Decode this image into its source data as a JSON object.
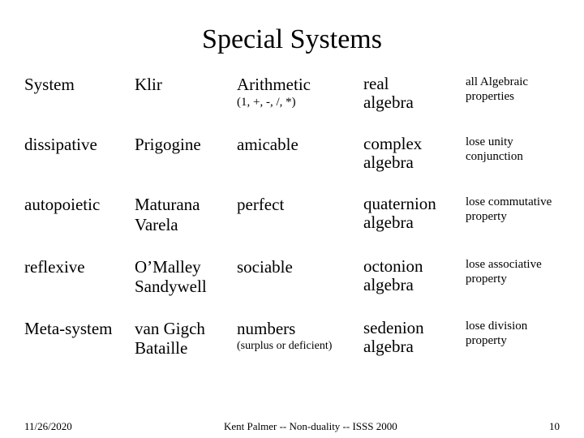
{
  "title": "Special Systems",
  "rows": [
    {
      "col1": "System",
      "col2": "Klir",
      "col3_main": "Arithmetic",
      "col3_sub": "(1, +, -, /, *)",
      "col4_line1": "real",
      "col4_line2": "algebra",
      "col5": "all Algebraic properties"
    },
    {
      "col1": "dissipative",
      "col2": "Prigogine",
      "col3_main": "amicable",
      "col3_sub": "",
      "col4_line1": "complex",
      "col4_line2": "algebra",
      "col5": "lose unity conjunction"
    },
    {
      "col1": "autopoietic",
      "col2": "Maturana Varela",
      "col3_main": "perfect",
      "col3_sub": "",
      "col4_line1": "quaternion",
      "col4_line2": "algebra",
      "col5": "lose commutative property"
    },
    {
      "col1": "reflexive",
      "col2": "O’Malley Sandywell",
      "col3_main": "sociable",
      "col3_sub": "",
      "col4_line1": "octonion",
      "col4_line2": "algebra",
      "col5": "lose associative property"
    },
    {
      "col1": "Meta-system",
      "col2": "van Gigch Bataille",
      "col3_main": "numbers",
      "col3_sub": "(surplus or deficient)",
      "col4_line1": "sedenion",
      "col4_line2": "algebra",
      "col5": "lose division property"
    }
  ],
  "footer": {
    "date": "11/26/2020",
    "center": "Kent Palmer -- Non-duality -- ISSS 2000",
    "page": "10"
  },
  "style": {
    "background": "#ffffff",
    "text_color": "#000000",
    "font_family": "Times New Roman",
    "title_fontsize": 34,
    "body_fontsize": 21,
    "small_fontsize": 15,
    "footer_fontsize": 13
  }
}
